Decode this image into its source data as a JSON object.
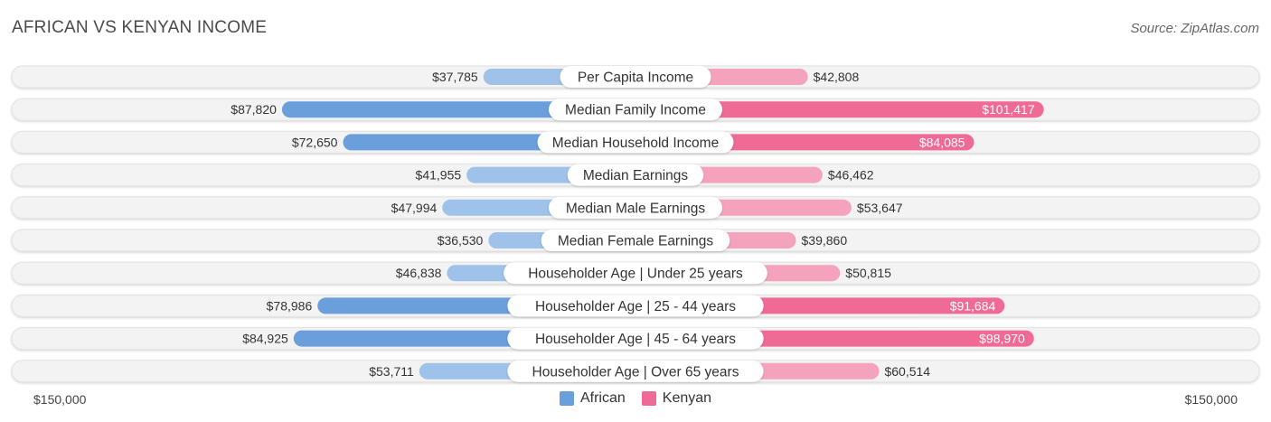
{
  "title": "AFRICAN VS KENYAN INCOME",
  "source": "Source: ZipAtlas.com",
  "axis": {
    "left_label": "$150,000",
    "right_label": "$150,000"
  },
  "legend": {
    "african": {
      "label": "African",
      "color": "#6a9fdc"
    },
    "kenyan": {
      "label": "Kenyan",
      "color": "#f06a96"
    }
  },
  "colors": {
    "african_strong": "#6a9fdc",
    "african_light": "#9fc2ea",
    "kenyan_strong": "#f06a96",
    "kenyan_light": "#f5a2bd"
  },
  "chart_data": {
    "type": "bar",
    "orientation": "diverging-horizontal",
    "xlim": [
      0,
      150000
    ],
    "categories": [
      "Per Capita Income",
      "Median Family Income",
      "Median Household Income",
      "Median Earnings",
      "Median Male Earnings",
      "Median Female Earnings",
      "Householder Age | Under 25 years",
      "Householder Age | 25 - 44 years",
      "Householder Age | 45 - 64 years",
      "Householder Age | Over 65 years"
    ],
    "series": [
      {
        "name": "African",
        "values": [
          37785,
          87820,
          72650,
          41955,
          47994,
          36530,
          46838,
          78986,
          84925,
          53711
        ],
        "labels": [
          "$37,785",
          "$87,820",
          "$72,650",
          "$41,955",
          "$47,994",
          "$36,530",
          "$46,838",
          "$78,986",
          "$84,925",
          "$53,711"
        ]
      },
      {
        "name": "Kenyan",
        "values": [
          42808,
          101417,
          84085,
          46462,
          53647,
          39860,
          50815,
          91684,
          98970,
          60514
        ],
        "labels": [
          "$42,808",
          "$101,417",
          "$84,085",
          "$46,462",
          "$53,647",
          "$39,860",
          "$50,815",
          "$91,684",
          "$98,970",
          "$60,514"
        ]
      }
    ]
  }
}
